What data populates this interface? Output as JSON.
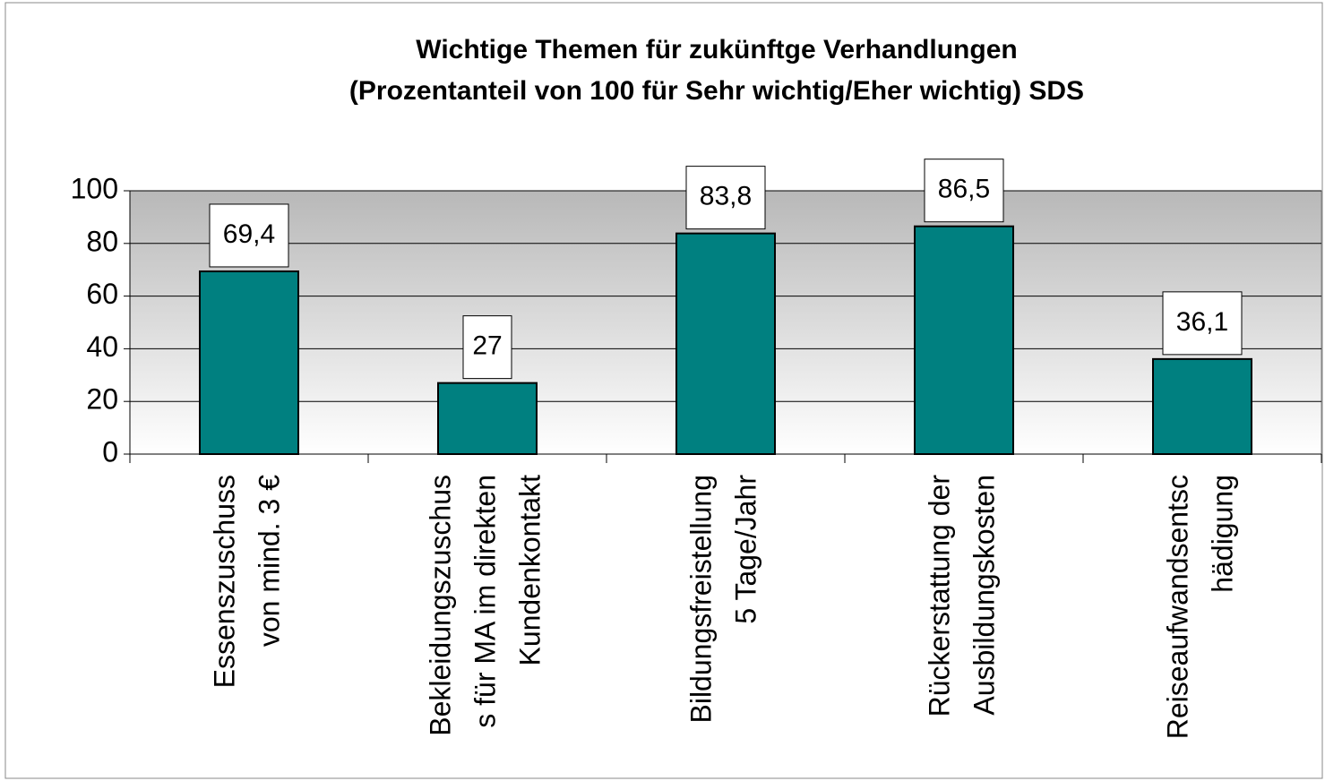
{
  "chart_data": {
    "type": "bar",
    "title": [
      "Wichtige Themen für zukünftge Verhandlungen",
      "(Prozentanteil von 100 für Sehr wichtig/Eher wichtig) SDS"
    ],
    "categories": [
      [
        "Essenszuschuss",
        "von mind. 3 €"
      ],
      [
        "Bekleidungszuschus",
        "s für MA im direkten",
        "Kundenkontakt"
      ],
      [
        "Bildungsfreistellung",
        "5 Tage/Jahr"
      ],
      [
        "Rückerstattung der",
        "Ausbildungskosten"
      ],
      [
        "Reiseaufwandsentsc",
        "hädigung"
      ]
    ],
    "values": [
      69.4,
      27,
      83.8,
      86.5,
      36.1
    ],
    "value_labels": [
      "69,4",
      "27",
      "83,8",
      "86,5",
      "36,1"
    ],
    "color": "#008080",
    "ylim": [
      0,
      100
    ],
    "yticks": [
      0,
      20,
      40,
      60,
      80,
      100
    ],
    "grid": true
  }
}
